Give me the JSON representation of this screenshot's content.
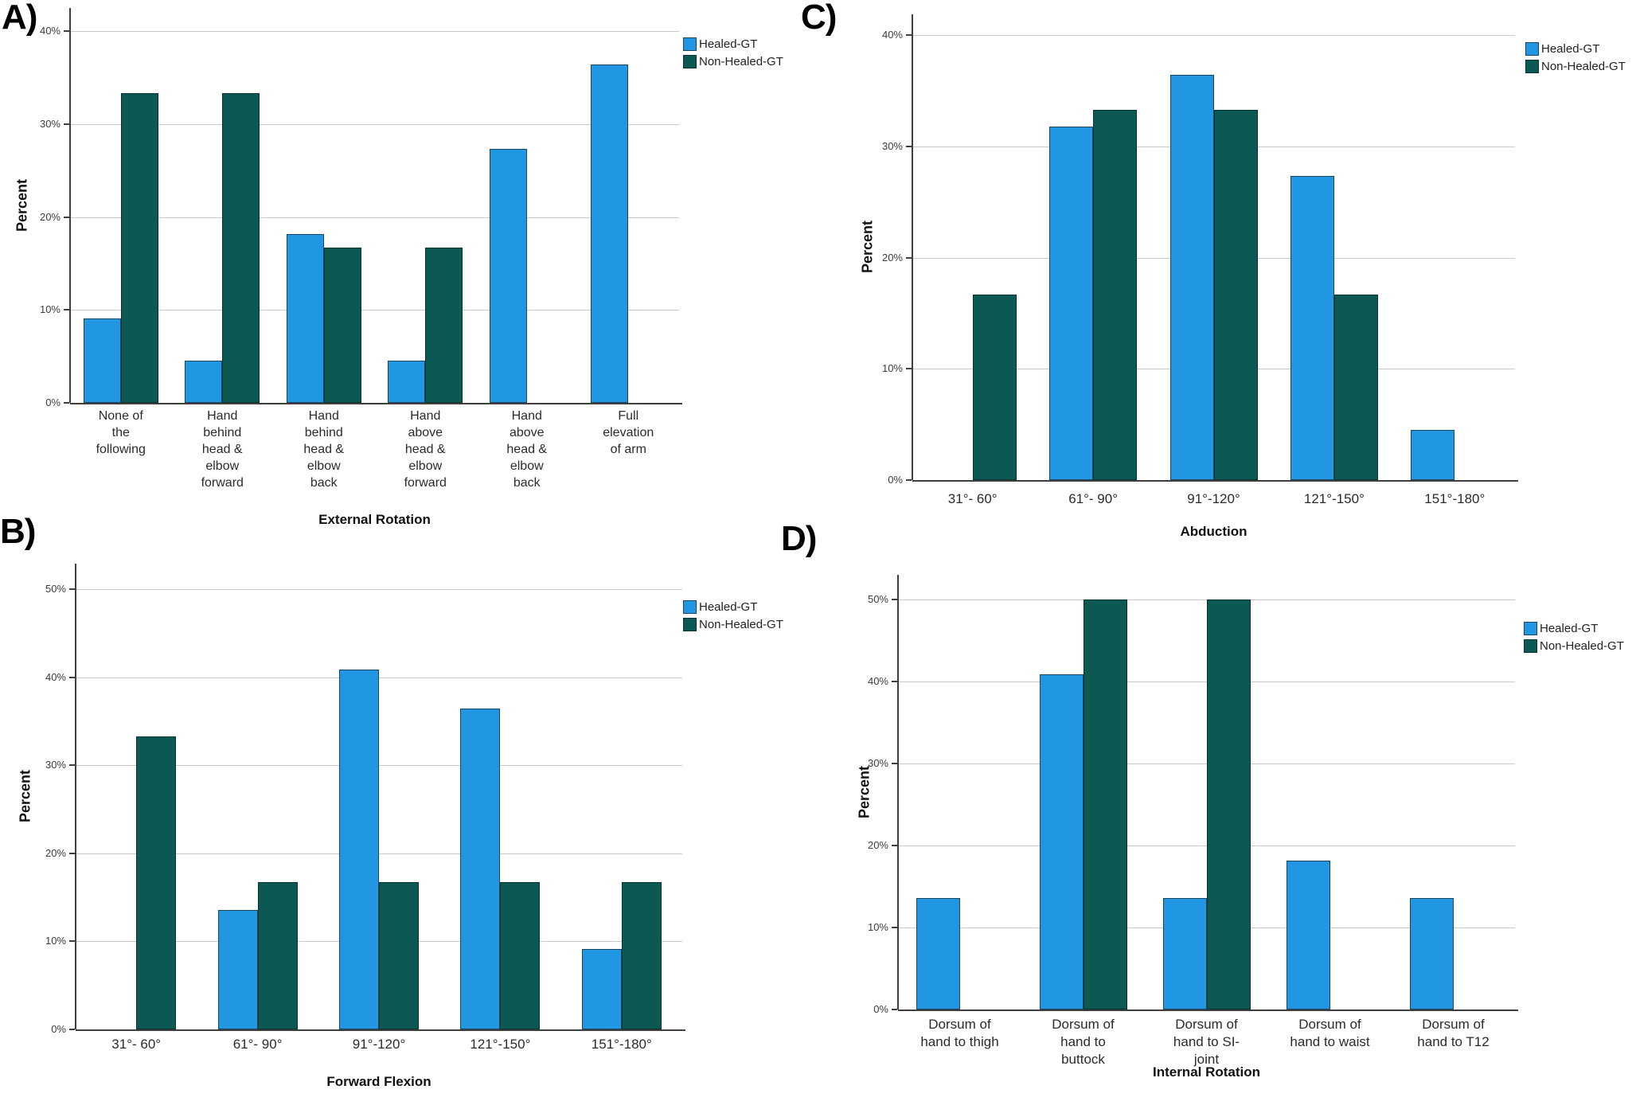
{
  "figure": {
    "background": "#ffffff",
    "description": "Four grouped bar charts (A–D) comparing shoulder range-of-motion outcomes for Healed-GT vs Non-Healed-GT groups"
  },
  "colors": {
    "healed_fill": "#2196E3",
    "healed_border": "#1C4560",
    "non_healed_fill": "#0C5954",
    "non_healed_border": "#063330",
    "gridline": "#c9c9c9",
    "axis": "#3f3f3f"
  },
  "chart_data": [
    {
      "id": "A",
      "type": "bar",
      "panel_label": "A)",
      "xlabel": "External Rotation",
      "ylabel": "Percent",
      "ylim": [
        0,
        42
      ],
      "grid": true,
      "legend_position": "right-top",
      "yticks": [
        {
          "label": "0%",
          "value": 0
        },
        {
          "label": "10%",
          "value": 10
        },
        {
          "label": "20%",
          "value": 20
        },
        {
          "label": "30%",
          "value": 30
        },
        {
          "label": "40%",
          "value": 40
        }
      ],
      "categories": [
        "None of\nthe\nfollowing",
        "Hand\nbehind\nhead &\nelbow\nforward",
        "Hand\nbehind\nhead &\nelbow\nback",
        "Hand\nabove\nhead &\nelbow\nforward",
        "Hand\nabove\nhead &\nelbow\nback",
        "Full\nelevation\nof arm"
      ],
      "series": [
        {
          "name": "Healed-GT",
          "key": "healed",
          "values": [
            9.1,
            4.5,
            18.2,
            4.5,
            27.3,
            36.4
          ]
        },
        {
          "name": "Non-Healed-GT",
          "key": "non_healed",
          "values": [
            33.3,
            33.3,
            16.7,
            16.7,
            0,
            0
          ]
        }
      ]
    },
    {
      "id": "B",
      "type": "bar",
      "panel_label": "B)",
      "xlabel": "Forward Flexion",
      "ylabel": "Percent",
      "ylim": [
        0,
        53
      ],
      "grid": true,
      "legend_position": "right-top",
      "yticks": [
        {
          "label": "0%",
          "value": 0
        },
        {
          "label": "10%",
          "value": 10
        },
        {
          "label": "20%",
          "value": 20
        },
        {
          "label": "30%",
          "value": 30
        },
        {
          "label": "40%",
          "value": 40
        },
        {
          "label": "50%",
          "value": 50
        }
      ],
      "categories": [
        "31°- 60°",
        "61°- 90°",
        "91°-120°",
        "121°-150°",
        "151°-180°"
      ],
      "series": [
        {
          "name": "Healed-GT",
          "key": "healed",
          "values": [
            0,
            13.6,
            40.9,
            36.4,
            9.1
          ]
        },
        {
          "name": "Non-Healed-GT",
          "key": "non_healed",
          "values": [
            33.3,
            16.7,
            16.7,
            16.7,
            16.7
          ]
        }
      ]
    },
    {
      "id": "C",
      "type": "bar",
      "panel_label": "C)",
      "xlabel": "Abduction",
      "ylabel": "Percent",
      "ylim": [
        0,
        42
      ],
      "grid": true,
      "legend_position": "right-top",
      "yticks": [
        {
          "label": "0%",
          "value": 0
        },
        {
          "label": "10%",
          "value": 10
        },
        {
          "label": "20%",
          "value": 20
        },
        {
          "label": "30%",
          "value": 30
        },
        {
          "label": "40%",
          "value": 40
        }
      ],
      "categories": [
        "31°- 60°",
        "61°- 90°",
        "91°-120°",
        "121°-150°",
        "151°-180°"
      ],
      "series": [
        {
          "name": "Healed-GT",
          "key": "healed",
          "values": [
            0,
            31.8,
            36.4,
            27.3,
            4.5
          ]
        },
        {
          "name": "Non-Healed-GT",
          "key": "non_healed",
          "values": [
            16.7,
            33.3,
            33.3,
            16.7,
            0
          ]
        }
      ]
    },
    {
      "id": "D",
      "type": "bar",
      "panel_label": "D)",
      "xlabel": "Internal Rotation",
      "ylabel": "Percent",
      "ylim": [
        0,
        53
      ],
      "grid": true,
      "legend_position": "right-top",
      "yticks": [
        {
          "label": "0%",
          "value": 0
        },
        {
          "label": "10%",
          "value": 10
        },
        {
          "label": "20%",
          "value": 20
        },
        {
          "label": "30%",
          "value": 30
        },
        {
          "label": "40%",
          "value": 40
        },
        {
          "label": "50%",
          "value": 50
        }
      ],
      "categories": [
        "Dorsum of\nhand to thigh",
        "Dorsum of\nhand to\nbuttock",
        "Dorsum of\nhand to SI-\njoint",
        "Dorsum of\nhand to waist",
        "Dorsum of\nhand to T12"
      ],
      "series": [
        {
          "name": "Healed-GT",
          "key": "healed",
          "values": [
            13.6,
            40.9,
            13.6,
            18.2,
            13.6
          ]
        },
        {
          "name": "Non-Healed-GT",
          "key": "non_healed",
          "values": [
            0,
            50,
            50,
            0,
            0
          ]
        }
      ]
    }
  ]
}
